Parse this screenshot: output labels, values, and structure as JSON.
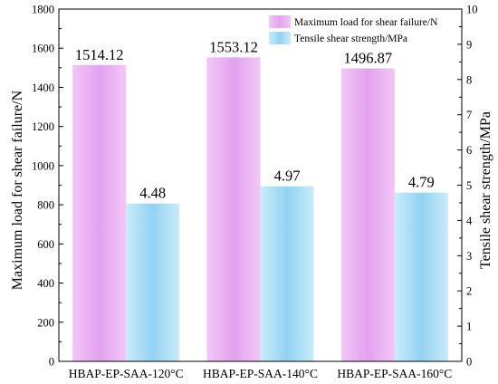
{
  "chart_data": {
    "type": "bar",
    "categories": [
      "HBAP-EP-SAA-120°C",
      "HBAP-EP-SAA-140°C",
      "HBAP-EP-SAA-160°C"
    ],
    "series": [
      {
        "name": "Maximum load for shear failure/N",
        "axis": "left",
        "values": [
          1514.12,
          1553.12,
          1496.87
        ],
        "labels": [
          "1514.12",
          "1553.12",
          "1496.87"
        ],
        "color_top": "#f2c6f7",
        "color_mid": "#e3a2ee"
      },
      {
        "name": "Tensile shear strength/MPa",
        "axis": "right",
        "values": [
          4.48,
          4.97,
          4.79
        ],
        "labels": [
          "4.48",
          "4.97",
          "4.79"
        ],
        "color_top": "#c9ecfa",
        "color_mid": "#92d2f2"
      }
    ],
    "ylabel": "Maximum load for shear failure/N",
    "ylabel_right": "Tensile shear strength/MPa",
    "ylim": [
      0,
      1800
    ],
    "ylim_right": [
      0,
      10
    ],
    "yticks": [
      "0",
      "200",
      "400",
      "600",
      "800",
      "1000",
      "1200",
      "1400",
      "1600",
      "1800"
    ],
    "yticks_right": [
      "0",
      "1",
      "2",
      "3",
      "4",
      "5",
      "6",
      "7",
      "8",
      "9",
      "10"
    ],
    "grid": false,
    "legend_position": "top-right"
  }
}
